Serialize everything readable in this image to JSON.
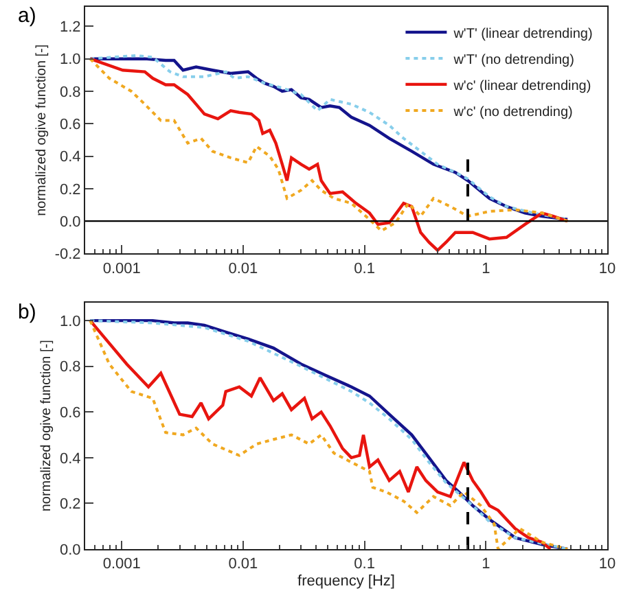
{
  "chart_data": [
    {
      "type": "line",
      "ylabel": "normalized ogive function [-]",
      "annotations": [
        "a)"
      ],
      "log": "x",
      "legend": "top right",
      "xlim": [
        0.0005,
        10
      ],
      "xticks": [
        0.001,
        0.01,
        0.1,
        1,
        10
      ],
      "ylim": [
        -0.2,
        1.32
      ],
      "yticks": [
        {
          "value": -0.2,
          "label": "-0.2"
        },
        {
          "value": 0,
          "label": "0.0"
        },
        {
          "value": 0.2,
          "label": "0.2"
        },
        {
          "value": 0.4,
          "label": "0.4"
        },
        {
          "value": 0.6,
          "label": "0.6"
        },
        {
          "value": 0.8,
          "label": "0.8"
        },
        {
          "value": 1,
          "label": "1.0"
        },
        {
          "value": 1.2,
          "label": "1.2"
        }
      ],
      "ref_lines": [
        {
          "axis": "y",
          "value": 0,
          "color": "#000000",
          "line_style": "solid"
        }
      ],
      "series": [
        {
          "name": "w'T' (linear detrending)",
          "color": "#14148c",
          "line_style": "solid",
          "x": [
            0.00055,
            0.00155,
            0.0023,
            0.0027,
            0.0032,
            0.0041,
            0.0056,
            0.0079,
            0.011,
            0.0129,
            0.015,
            0.0178,
            0.021,
            0.025,
            0.03,
            0.035,
            0.044,
            0.052,
            0.062,
            0.078,
            0.11,
            0.16,
            0.245,
            0.37,
            0.56,
            0.71,
            1.07,
            1.48,
            2.1,
            2.9,
            4.7
          ],
          "values": [
            1.0,
            1.0,
            0.99,
            0.99,
            0.93,
            0.95,
            0.93,
            0.91,
            0.92,
            0.88,
            0.85,
            0.83,
            0.8,
            0.81,
            0.76,
            0.75,
            0.7,
            0.71,
            0.7,
            0.64,
            0.59,
            0.51,
            0.43,
            0.35,
            0.3,
            0.25,
            0.14,
            0.09,
            0.05,
            0.03,
            0.01
          ]
        },
        {
          "name": "w'T' (no detrending)",
          "color": "#87ceeb",
          "line_style": "dotted",
          "x": [
            0.00055,
            0.0013,
            0.0018,
            0.0025,
            0.0032,
            0.0048,
            0.0072,
            0.0085,
            0.011,
            0.015,
            0.021,
            0.03,
            0.041,
            0.052,
            0.078,
            0.11,
            0.16,
            0.21,
            0.29,
            0.4,
            0.56,
            0.71,
            1.07,
            1.48,
            2.45,
            4.7
          ],
          "values": [
            1.0,
            1.02,
            1.01,
            0.92,
            0.89,
            0.89,
            0.92,
            0.88,
            0.89,
            0.85,
            0.82,
            0.78,
            0.68,
            0.75,
            0.72,
            0.67,
            0.59,
            0.51,
            0.43,
            0.35,
            0.3,
            0.26,
            0.15,
            0.09,
            0.05,
            0.01
          ]
        },
        {
          "name": "w'c' (linear detrending)",
          "color": "#e8150f",
          "line_style": "solid",
          "x": [
            0.00055,
            0.00102,
            0.00155,
            0.0018,
            0.0023,
            0.0027,
            0.0035,
            0.0041,
            0.0048,
            0.0062,
            0.0079,
            0.0093,
            0.0117,
            0.0135,
            0.0145,
            0.0166,
            0.0186,
            0.021,
            0.023,
            0.025,
            0.03,
            0.035,
            0.041,
            0.044,
            0.052,
            0.066,
            0.085,
            0.11,
            0.129,
            0.16,
            0.21,
            0.245,
            0.29,
            0.34,
            0.4,
            0.47,
            0.56,
            0.78,
            1.07,
            1.48,
            2.1,
            2.9,
            3.6,
            4.7
          ],
          "values": [
            1.0,
            0.93,
            0.92,
            0.88,
            0.84,
            0.84,
            0.78,
            0.72,
            0.66,
            0.63,
            0.68,
            0.67,
            0.66,
            0.62,
            0.54,
            0.56,
            0.48,
            0.35,
            0.25,
            0.39,
            0.35,
            0.32,
            0.35,
            0.25,
            0.17,
            0.18,
            0.11,
            0.05,
            -0.02,
            -0.01,
            0.11,
            0.09,
            -0.07,
            -0.13,
            -0.18,
            -0.13,
            -0.07,
            -0.07,
            -0.11,
            -0.1,
            -0.02,
            0.05,
            0.03,
            0.0
          ]
        },
        {
          "name": "w'c' (no detrending)",
          "color": "#f0a820",
          "line_style": "dotted",
          "x": [
            0.00055,
            0.00079,
            0.0012,
            0.00155,
            0.0021,
            0.0027,
            0.0035,
            0.0045,
            0.0056,
            0.0079,
            0.011,
            0.0129,
            0.0166,
            0.0195,
            0.023,
            0.03,
            0.037,
            0.044,
            0.056,
            0.078,
            0.11,
            0.138,
            0.18,
            0.23,
            0.29,
            0.37,
            0.51,
            0.71,
            1.07,
            1.74,
            2.9,
            4.7
          ],
          "values": [
            1.0,
            0.88,
            0.8,
            0.72,
            0.62,
            0.62,
            0.48,
            0.51,
            0.43,
            0.39,
            0.36,
            0.46,
            0.4,
            0.32,
            0.14,
            0.19,
            0.25,
            0.19,
            0.14,
            0.11,
            0.01,
            -0.06,
            -0.01,
            0.11,
            0.03,
            0.14,
            0.09,
            0.03,
            0.06,
            0.07,
            0.05,
            0.0
          ]
        },
        {
          "color": "#000000",
          "line_style": "dashed",
          "x": [
            0.71,
            0.71
          ],
          "values": [
            0,
            0.4
          ]
        }
      ]
    },
    {
      "type": "line",
      "xlabel": "frequency [Hz]",
      "ylabel": "normalized ogive function [-]",
      "annotations": [
        "b)"
      ],
      "log": "x",
      "xlim": [
        0.0005,
        10
      ],
      "xticks": [
        0.001,
        0.01,
        0.1,
        1,
        10
      ],
      "ylim": [
        0,
        1.08
      ],
      "yticks": [
        {
          "value": 0,
          "label": "0.0"
        },
        {
          "value": 0.2,
          "label": "0.2"
        },
        {
          "value": 0.4,
          "label": "0.4"
        },
        {
          "value": 0.6,
          "label": "0.6"
        },
        {
          "value": 0.8,
          "label": "0.8"
        },
        {
          "value": 1,
          "label": "1.0"
        }
      ],
      "series": [
        {
          "color": "#14148c",
          "line_style": "solid",
          "x": [
            0.00055,
            0.0018,
            0.0027,
            0.0035,
            0.0048,
            0.0072,
            0.011,
            0.0178,
            0.03,
            0.048,
            0.078,
            0.11,
            0.16,
            0.245,
            0.34,
            0.47,
            0.6,
            0.78,
            1.07,
            1.74,
            2.9,
            4.7
          ],
          "values": [
            1.0,
            1.0,
            0.99,
            0.99,
            0.98,
            0.95,
            0.92,
            0.88,
            0.81,
            0.76,
            0.71,
            0.67,
            0.59,
            0.5,
            0.4,
            0.3,
            0.25,
            0.19,
            0.13,
            0.05,
            0.02,
            0.0
          ]
        },
        {
          "color": "#87ceeb",
          "line_style": "dotted",
          "x": [
            0.00055,
            0.0018,
            0.0048,
            0.011,
            0.03,
            0.078,
            0.11,
            0.16,
            0.245,
            0.34,
            0.47,
            0.78,
            1.07,
            1.74,
            4.7
          ],
          "values": [
            1.0,
            0.99,
            0.97,
            0.91,
            0.8,
            0.69,
            0.64,
            0.57,
            0.48,
            0.38,
            0.29,
            0.19,
            0.12,
            0.05,
            0.0
          ]
        },
        {
          "color": "#e8150f",
          "line_style": "solid",
          "x": [
            0.00055,
            0.0011,
            0.00166,
            0.0021,
            0.003,
            0.0038,
            0.0045,
            0.0052,
            0.0068,
            0.0072,
            0.0093,
            0.0117,
            0.0138,
            0.0178,
            0.021,
            0.025,
            0.032,
            0.037,
            0.044,
            0.052,
            0.066,
            0.078,
            0.091,
            0.098,
            0.11,
            0.129,
            0.16,
            0.195,
            0.23,
            0.27,
            0.32,
            0.4,
            0.51,
            0.66,
            0.78,
            0.91,
            1.07,
            1.26,
            1.48,
            1.74,
            2.24,
            2.9,
            3.4
          ],
          "values": [
            1.0,
            0.81,
            0.71,
            0.77,
            0.59,
            0.58,
            0.64,
            0.57,
            0.63,
            0.69,
            0.71,
            0.67,
            0.75,
            0.65,
            0.68,
            0.61,
            0.66,
            0.57,
            0.6,
            0.54,
            0.44,
            0.4,
            0.41,
            0.5,
            0.36,
            0.39,
            0.3,
            0.34,
            0.25,
            0.36,
            0.3,
            0.25,
            0.23,
            0.38,
            0.3,
            0.25,
            0.19,
            0.17,
            0.13,
            0.09,
            0.05,
            0.03,
            0.0
          ]
        },
        {
          "color": "#f0a820",
          "line_style": "dotted",
          "x": [
            0.00055,
            0.00079,
            0.0012,
            0.0018,
            0.0023,
            0.0032,
            0.0041,
            0.0056,
            0.0093,
            0.0129,
            0.0178,
            0.025,
            0.035,
            0.044,
            0.056,
            0.078,
            0.11,
            0.117,
            0.151,
            0.21,
            0.27,
            0.37,
            0.51,
            0.66,
            0.91,
            1.17,
            1.26,
            1.9,
            2.9,
            4.7
          ],
          "values": [
            1.0,
            0.81,
            0.69,
            0.66,
            0.51,
            0.5,
            0.53,
            0.46,
            0.41,
            0.46,
            0.48,
            0.5,
            0.46,
            0.5,
            0.42,
            0.38,
            0.34,
            0.27,
            0.25,
            0.21,
            0.16,
            0.23,
            0.19,
            0.25,
            0.19,
            0.11,
            0.0,
            0.09,
            0.03,
            0.0
          ]
        },
        {
          "color": "#000000",
          "line_style": "dashed",
          "x": [
            0.71,
            0.71
          ],
          "values": [
            0,
            0.38
          ]
        }
      ]
    }
  ]
}
